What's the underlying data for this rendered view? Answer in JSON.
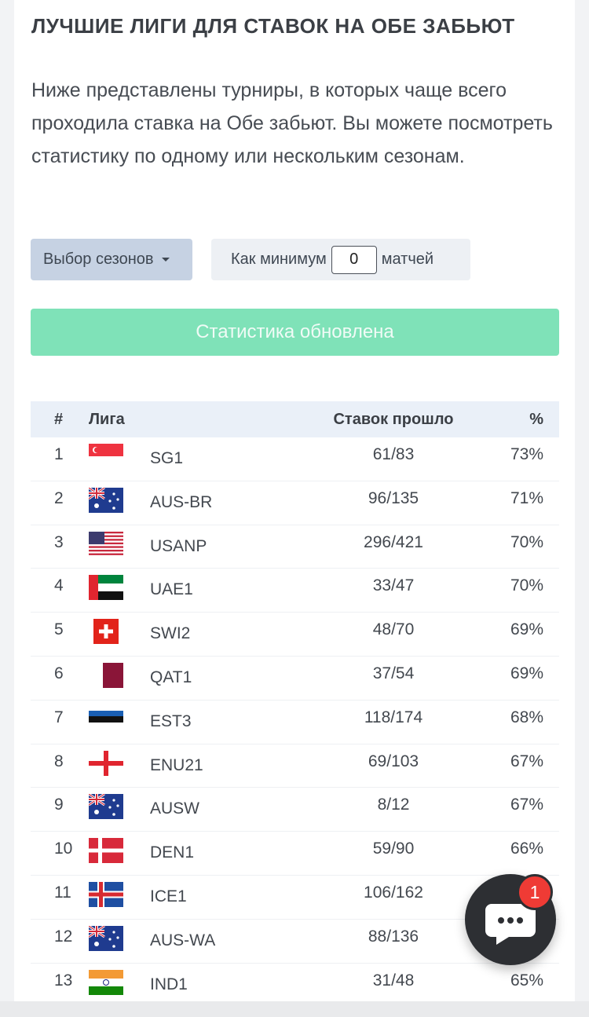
{
  "title": "ЛУЧШИЕ ЛИГИ ДЛЯ СТАВОК НА ОБЕ ЗАБЬЮТ",
  "description": "Ниже представлены турниры, в которых чаще всего проходила ставка на Обе забьют. Вы можете посмотреть статистику по одному или нескольким сезонам.",
  "controls": {
    "season_button": "Выбор сезонов",
    "min_prefix": "Как минимум",
    "min_value": "0",
    "min_suffix": "матчей",
    "status": "Статистика обновлена"
  },
  "table": {
    "headers": {
      "num": "#",
      "league": "Лига",
      "passed": "Ставок прошло",
      "pct": "%"
    },
    "rows": [
      {
        "num": "1",
        "flag": "singapore-flag-icon",
        "league": "SG1",
        "passed": "61/83",
        "pct": "73%"
      },
      {
        "num": "2",
        "flag": "australia-flag-icon",
        "league": "AUS-BR",
        "passed": "96/135",
        "pct": "71%"
      },
      {
        "num": "3",
        "flag": "usa-flag-icon",
        "league": "USANP",
        "passed": "296/421",
        "pct": "70%"
      },
      {
        "num": "4",
        "flag": "uae-flag-icon",
        "league": "UAE1",
        "passed": "33/47",
        "pct": "70%"
      },
      {
        "num": "5",
        "flag": "switzerland-flag-icon",
        "league": "SWI2",
        "passed": "48/70",
        "pct": "69%"
      },
      {
        "num": "6",
        "flag": "qatar-flag-icon",
        "league": "QAT1",
        "passed": "37/54",
        "pct": "69%"
      },
      {
        "num": "7",
        "flag": "estonia-flag-icon",
        "league": "EST3",
        "passed": "118/174",
        "pct": "68%"
      },
      {
        "num": "8",
        "flag": "england-flag-icon",
        "league": "ENU21",
        "passed": "69/103",
        "pct": "67%"
      },
      {
        "num": "9",
        "flag": "australia-flag-icon",
        "league": "AUSW",
        "passed": "8/12",
        "pct": "67%"
      },
      {
        "num": "10",
        "flag": "denmark-flag-icon",
        "league": "DEN1",
        "passed": "59/90",
        "pct": "66%"
      },
      {
        "num": "11",
        "flag": "iceland-flag-icon",
        "league": "ICE1",
        "passed": "106/162",
        "pct": ""
      },
      {
        "num": "12",
        "flag": "australia-flag-icon",
        "league": "AUS-WA",
        "passed": "88/136",
        "pct": ""
      },
      {
        "num": "13",
        "flag": "india-flag-icon",
        "league": "IND1",
        "passed": "31/48",
        "pct": "65%"
      }
    ]
  },
  "chat": {
    "badge": "1",
    "icon": "chat-bubble-icon"
  },
  "colors": {
    "status_green": "#7fe2b8",
    "season_button": "#c6d2e3",
    "badge_red": "#ef3b35",
    "chat_dark": "#2d2f33"
  }
}
